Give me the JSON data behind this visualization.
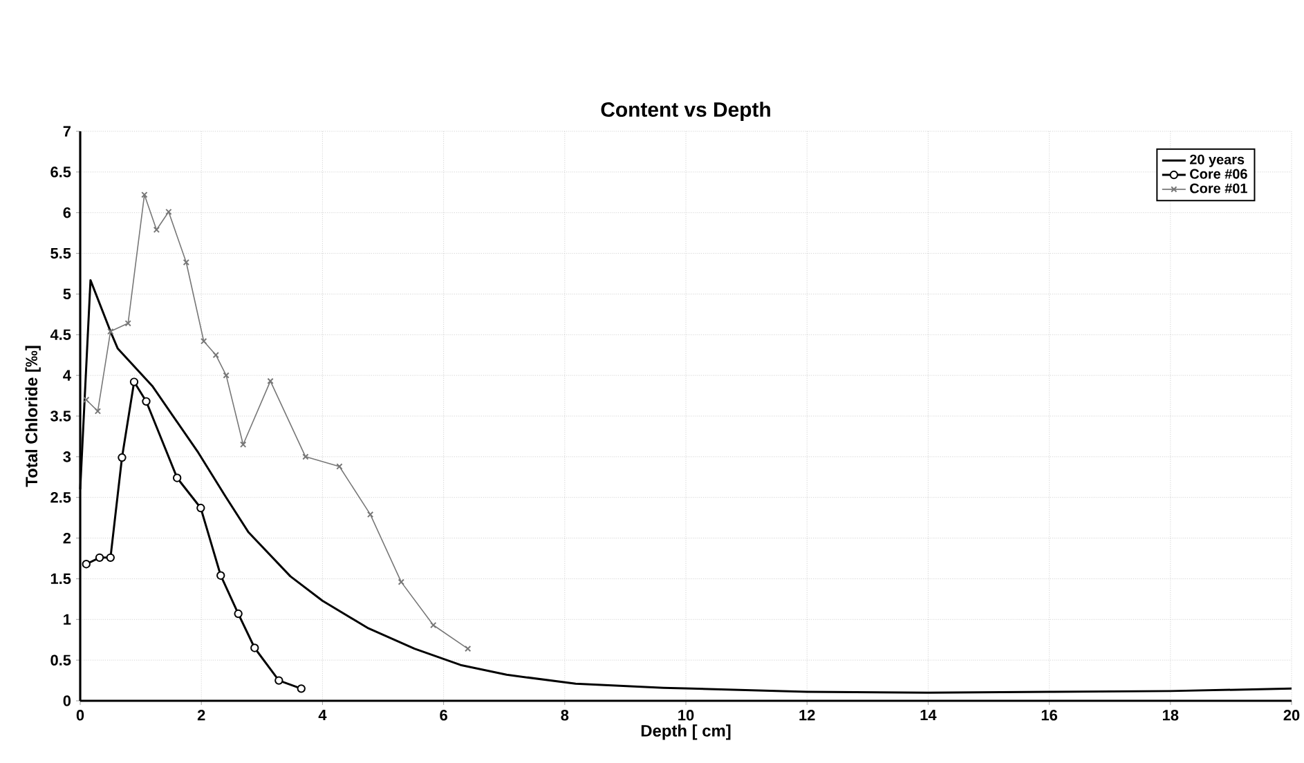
{
  "chart_data": {
    "type": "line",
    "title": "Content vs Depth",
    "xlabel": "Depth [ cm]",
    "ylabel": "Total Chloride  [‰]",
    "xlim": [
      0,
      20
    ],
    "xticks": [
      0,
      2,
      4,
      6,
      8,
      10,
      12,
      14,
      16,
      18,
      20
    ],
    "ylim": [
      0,
      7
    ],
    "yticks": [
      0,
      0.5,
      1,
      1.5,
      2,
      2.5,
      3,
      3.5,
      4,
      4.5,
      5,
      5.5,
      6,
      6.5,
      7
    ],
    "grid": true,
    "legend": "top right",
    "series": [
      {
        "name": "20 years",
        "color": "#000000",
        "marker": "none",
        "x": [
          0,
          0.17,
          0.5,
          0.62,
          1.19,
          1.95,
          2.4,
          2.78,
          3.47,
          4.0,
          4.76,
          5.52,
          6.28,
          7.04,
          8.18,
          9.63,
          10.09,
          12,
          14,
          16,
          18,
          20
        ],
        "values": [
          2.6,
          5.17,
          4.54,
          4.33,
          3.87,
          3.05,
          2.51,
          2.07,
          1.53,
          1.23,
          0.89,
          0.64,
          0.44,
          0.32,
          0.21,
          0.16,
          0.15,
          0.11,
          0.1,
          0.11,
          0.12,
          0.15
        ]
      },
      {
        "name": "Core #06",
        "color": "#000000",
        "marker": "circle",
        "x": [
          0.1,
          0.32,
          0.5,
          0.69,
          0.89,
          1.09,
          1.6,
          1.99,
          2.32,
          2.61,
          2.88,
          3.28,
          3.65
        ],
        "values": [
          1.68,
          1.76,
          1.76,
          2.99,
          3.92,
          3.68,
          2.74,
          2.37,
          1.54,
          1.07,
          0.65,
          0.25,
          0.15
        ]
      },
      {
        "name": "Core #01",
        "color": "#777777",
        "marker": "cross",
        "x": [
          0.1,
          0.29,
          0.5,
          0.79,
          1.06,
          1.26,
          1.46,
          1.75,
          2.04,
          2.24,
          2.41,
          2.69,
          3.14,
          3.72,
          4.28,
          4.79,
          5.3,
          5.83,
          6.4
        ],
        "values": [
          3.7,
          3.56,
          4.54,
          4.64,
          6.22,
          5.79,
          6.01,
          5.39,
          4.42,
          4.25,
          4.0,
          3.15,
          3.93,
          3.0,
          2.88,
          2.29,
          1.46,
          0.93,
          0.64
        ]
      }
    ]
  }
}
